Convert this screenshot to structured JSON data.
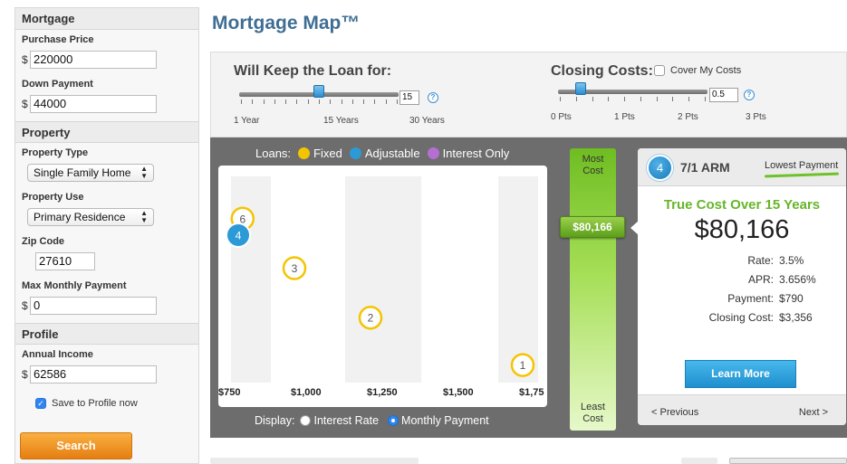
{
  "title": "Mortgage Map™",
  "sidebar": {
    "mortgage_header": "Mortgage",
    "purchase_price_label": "Purchase Price",
    "purchase_price_value": "220000",
    "down_payment_label": "Down Payment",
    "down_payment_value": "44000",
    "property_header": "Property",
    "property_type_label": "Property Type",
    "property_type_value": "Single Family Home",
    "property_use_label": "Property Use",
    "property_use_value": "Primary Residence",
    "zip_label": "Zip Code",
    "zip_value": "27610",
    "max_payment_label": "Max Monthly Payment",
    "max_payment_value": "0",
    "profile_header": "Profile",
    "annual_income_label": "Annual Income",
    "annual_income_value": "62586",
    "save_profile_label": "Save to Profile now",
    "save_profile_checked": true,
    "search_label": "Search",
    "currency_symbol": "$"
  },
  "controls": {
    "keep_loan_title": "Will Keep the Loan for:",
    "keep_loan_value": "15",
    "keep_loan_fraction": 0.5,
    "keep_loan_ticks": [
      "1 Year",
      "15 Years",
      "30 Years"
    ],
    "closing_title": "Closing Costs:",
    "cover_costs_label": "Cover My Costs",
    "cover_costs_checked": false,
    "closing_value": "0.5",
    "closing_fraction": 0.15,
    "closing_ticks": [
      "0 Pts",
      "1 Pts",
      "2 Pts",
      "3 Pts"
    ],
    "help_glyph": "?"
  },
  "legend": {
    "label": "Loans:",
    "items": [
      {
        "name": "Fixed",
        "color": "#f5c400"
      },
      {
        "name": "Adjustable",
        "color": "#2b9ad6"
      },
      {
        "name": "Interest Only",
        "color": "#b56fd3"
      }
    ]
  },
  "chart_data": {
    "type": "scatter",
    "x_tick_labels": [
      "$750",
      "$1,000",
      "$1,250",
      "$1,500",
      "$1,75"
    ],
    "points": [
      {
        "label": "6",
        "type": "fixed",
        "payment": 800,
        "cost_rank": 0.17
      },
      {
        "label": "4",
        "type": "adjustable",
        "payment": 790,
        "cost_rank": 0.25
      },
      {
        "label": "3",
        "type": "fixed",
        "payment": 1000,
        "cost_rank": 0.41
      },
      {
        "label": "2",
        "type": "fixed",
        "payment": 1250,
        "cost_rank": 0.65
      },
      {
        "label": "1",
        "type": "fixed",
        "payment": 1750,
        "cost_rank": 0.88
      }
    ],
    "colors": {
      "fixed": "#f5c400",
      "adjustable": "#2b9ad6",
      "interest_only": "#b56fd3"
    }
  },
  "display": {
    "label": "Display:",
    "option_rate": "Interest Rate",
    "option_payment": "Monthly Payment",
    "selected": "payment"
  },
  "cost_bar": {
    "top_label_1": "Most",
    "top_label_2": "Cost",
    "bottom_label_1": "Least",
    "bottom_label_2": "Cost",
    "marker_value": "$80,166",
    "marker_fraction": 0.27
  },
  "detail": {
    "badge": "4",
    "loan_name": "7/1 ARM",
    "tag": "Lowest Payment",
    "subtitle": "True Cost Over 15 Years",
    "true_cost": "$80,166",
    "rate_label": "Rate:",
    "rate_value": "3.5%",
    "apr_label": "APR:",
    "apr_value": "3.656%",
    "payment_label": "Payment:",
    "payment_value": "$790",
    "closing_label": "Closing Cost:",
    "closing_value": "$3,356",
    "learn_more": "Learn More",
    "previous": "< Previous",
    "next": "Next >"
  }
}
